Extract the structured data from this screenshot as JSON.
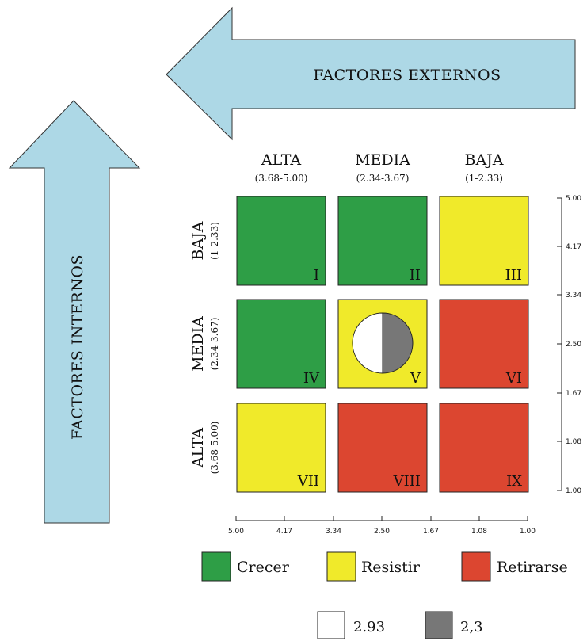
{
  "arrows": {
    "external_label": "FACTORES EXTERNOS",
    "internal_label": "FACTORES INTERNOS",
    "fill_color": "#add8e6"
  },
  "columns": [
    {
      "title": "ALTA",
      "range": "(3.68-5.00)"
    },
    {
      "title": "MEDIA",
      "range": "(2.34-3.67)"
    },
    {
      "title": "BAJA",
      "range": "(1-2.33)"
    }
  ],
  "rows": [
    {
      "title": "BAJA",
      "range": "(1-2.33)"
    },
    {
      "title": "MEDIA",
      "range": "(2.34-3.67)"
    },
    {
      "title": "ALTA",
      "range": "(3.68-5.00)"
    }
  ],
  "cells": [
    {
      "label": "I",
      "category": "Crecer"
    },
    {
      "label": "II",
      "category": "Crecer"
    },
    {
      "label": "III",
      "category": "Resistir"
    },
    {
      "label": "IV",
      "category": "Crecer"
    },
    {
      "label": "V",
      "category": "Resistir"
    },
    {
      "label": "VI",
      "category": "Retirarse"
    },
    {
      "label": "VII",
      "category": "Resistir"
    },
    {
      "label": "VIII",
      "category": "Retirarse"
    },
    {
      "label": "IX",
      "category": "Retirarse"
    }
  ],
  "x_ticks": [
    "5.00",
    "4.17",
    "3.34",
    "2.50",
    "1.67",
    "1.08",
    "1.00"
  ],
  "y_ticks": [
    "5.00",
    "4.17",
    "3.34",
    "2.50",
    "1.67",
    "1.08",
    "1.00"
  ],
  "legend": [
    {
      "label": "Crecer",
      "color": "#2e9e46"
    },
    {
      "label": "Resistir",
      "color": "#f0ea2a"
    },
    {
      "label": "Retirarse",
      "color": "#dc4630"
    }
  ],
  "marker_key": [
    {
      "label": "2.93",
      "color": "#ffffff"
    },
    {
      "label": "2,3",
      "color": "#777777"
    }
  ],
  "marker": {
    "cell": "V",
    "left_value": 2.93,
    "right_value": 2.3
  }
}
